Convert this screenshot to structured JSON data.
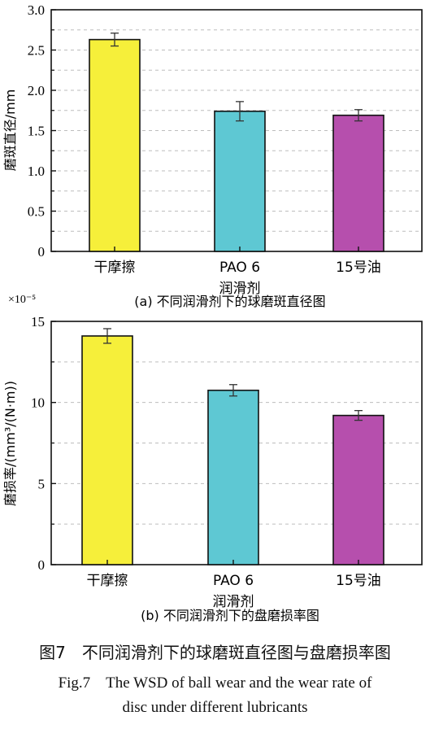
{
  "chart_data": [
    {
      "type": "bar",
      "categories": [
        "干摩擦",
        "PAO 6",
        "15号油"
      ],
      "values": [
        2.63,
        1.74,
        1.69
      ],
      "errors": [
        0.08,
        0.12,
        0.07
      ],
      "colors": [
        "#f6ef3a",
        "#5ec8d3",
        "#b64fad"
      ],
      "ylabel": "磨斑直径/mm",
      "xlabel": "润滑剂",
      "ylim": [
        0,
        3.0
      ],
      "yticks": [
        "0",
        "0.5",
        "1.0",
        "1.5",
        "2.0",
        "2.5",
        "3.0"
      ],
      "caption": "(a) 不同润滑剂下的球磨斑直径图",
      "grid": "dashed"
    },
    {
      "type": "bar",
      "categories": [
        "干摩擦",
        "PAO 6",
        "15号油"
      ],
      "values": [
        14.1,
        10.75,
        9.2
      ],
      "errors": [
        0.45,
        0.35,
        0.3
      ],
      "colors": [
        "#f6ef3a",
        "#5ec8d3",
        "#b64fad"
      ],
      "ylabel": "磨损率/(mm³/(N·m))",
      "xlabel": "润滑剂",
      "ylim": [
        0,
        15
      ],
      "yticks": [
        "0",
        "5",
        "10",
        "15"
      ],
      "scale_label": "×10⁻⁵",
      "caption": "(b) 不同润滑剂下的盘磨损率图",
      "grid": "dashed"
    }
  ],
  "figure_caption": {
    "cn": "图7　不同润滑剂下的球磨斑直径图与盘磨损率图",
    "en_line1": "Fig.7　The WSD of ball wear and the wear rate of",
    "en_line2": "disc under different lubricants"
  }
}
